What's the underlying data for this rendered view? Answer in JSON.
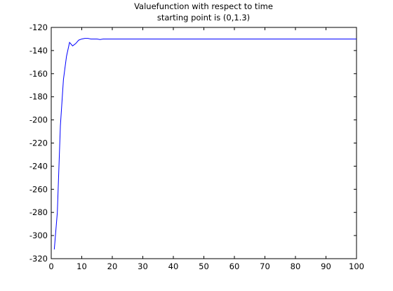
{
  "chart_data": {
    "type": "line",
    "title_line1": "Valuefunction with respect to time",
    "title_line2": "starting point is (0,1.3)",
    "xlabel": "",
    "ylabel": "",
    "xlim": [
      0,
      100
    ],
    "ylim": [
      -320,
      -120
    ],
    "xticks": [
      0,
      10,
      20,
      30,
      40,
      50,
      60,
      70,
      80,
      90,
      100
    ],
    "yticks": [
      -320,
      -300,
      -280,
      -260,
      -240,
      -220,
      -200,
      -180,
      -160,
      -140,
      -120
    ],
    "xtick_labels": [
      "0",
      "10",
      "20",
      "30",
      "40",
      "50",
      "60",
      "70",
      "80",
      "90",
      "100"
    ],
    "ytick_labels": [
      "-320",
      "-300",
      "-280",
      "-260",
      "-240",
      "-220",
      "-200",
      "-180",
      "-160",
      "-140",
      "-120"
    ],
    "grid": false,
    "series": [
      {
        "color": "#0000ff",
        "x": [
          1,
          2,
          3,
          4,
          5,
          6,
          7,
          8,
          9,
          10,
          11,
          12,
          13,
          14,
          15,
          16,
          17,
          18,
          20,
          25,
          30,
          40,
          50,
          60,
          70,
          80,
          90,
          100
        ],
        "y": [
          -312,
          -280,
          -205,
          -165,
          -145,
          -133,
          -136,
          -134,
          -131,
          -130,
          -129.5,
          -129.5,
          -130,
          -130,
          -130,
          -130.5,
          -130,
          -130,
          -130,
          -130,
          -130,
          -130,
          -130,
          -130,
          -130,
          -130,
          -130,
          -130
        ]
      }
    ]
  }
}
